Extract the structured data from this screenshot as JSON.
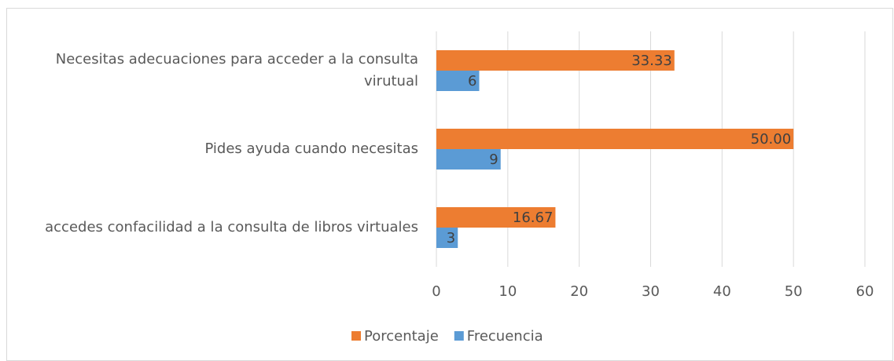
{
  "chart_data": {
    "type": "barh",
    "categories": [
      "Necesitas adecuaciones para acceder a la consulta virutual",
      "Pides ayuda cuando necesitas",
      "accedes confacilidad a la consulta de libros virtuales"
    ],
    "series": [
      {
        "name": "Porcentaje",
        "color": "#ED7D31",
        "values": [
          33.33,
          50.0,
          16.67
        ],
        "value_labels": [
          "33.33",
          "50.00",
          "16.67"
        ]
      },
      {
        "name": "Frecuencia",
        "color": "#5B9BD5",
        "values": [
          6,
          9,
          3
        ]
      }
    ],
    "xlim": [
      0,
      60
    ],
    "xticks": [
      0,
      10,
      20,
      30,
      40,
      50,
      60
    ],
    "grid": true,
    "legend": "bottom"
  }
}
